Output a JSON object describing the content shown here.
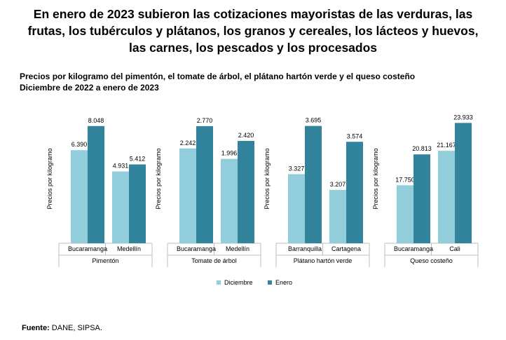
{
  "headline": {
    "line1": "En enero de 2023 subieron las cotizaciones mayoristas de las verduras, las",
    "line2": "frutas, los tubérculos y plátanos, los granos y cereales, los lácteos y huevos,",
    "line3": "las carnes, los pescados y los procesados"
  },
  "subtitle": {
    "line1": "Precios por kilogramo del pimentón, el tomate de árbol, el plátano hartón verde y el queso costeño",
    "line2": "Diciembre de 2022 a enero de 2023"
  },
  "source": {
    "label": "Fuente:",
    "text": "DANE, SIPSA."
  },
  "colors": {
    "diciembre": "#92cddc",
    "enero": "#31849b",
    "axis": "#bfbfbf"
  },
  "chart_data": {
    "type": "bar",
    "ylabel": "Precios por kilogramo",
    "legend": [
      "Diciembre",
      "Enero"
    ],
    "legend_position": "bottom",
    "grid": false,
    "panels": [
      {
        "product": "Pimentón",
        "categories": [
          "Bucaramanga",
          "Medellín"
        ],
        "series": [
          {
            "name": "Diciembre",
            "values": [
              6390,
              4931
            ],
            "labels": [
              "6.390",
              "4.931"
            ]
          },
          {
            "name": "Enero",
            "values": [
              8048,
              5412
            ],
            "labels": [
              "8.048",
              "5.412"
            ]
          }
        ],
        "ylim": [
          0,
          9000
        ]
      },
      {
        "product": "Tomate de árbol",
        "categories": [
          "Bucaramanga",
          "Medellín"
        ],
        "series": [
          {
            "name": "Diciembre",
            "values": [
              2242,
              1996
            ],
            "labels": [
              "2.242",
              "1.996"
            ]
          },
          {
            "name": "Enero",
            "values": [
              2770,
              2420
            ],
            "labels": [
              "2.770",
              "2.420"
            ]
          }
        ],
        "ylim": [
          0,
          3100
        ]
      },
      {
        "product": "Plátano hartón verde",
        "categories": [
          "Barranquilla",
          "Cartagena"
        ],
        "series": [
          {
            "name": "Diciembre",
            "values": [
              3327,
              3207
            ],
            "labels": [
              "3.327",
              "3.207"
            ]
          },
          {
            "name": "Enero",
            "values": [
              3695,
              3574
            ],
            "labels": [
              "3.695",
              "3.574"
            ]
          }
        ],
        "ylim": [
          2800,
          3800
        ]
      },
      {
        "product": "Queso costeño",
        "categories": [
          "Bucaramanga",
          "Cali"
        ],
        "series": [
          {
            "name": "Diciembre",
            "values": [
              17750,
              21167
            ],
            "labels": [
              "17.750",
              "21.167"
            ]
          },
          {
            "name": "Enero",
            "values": [
              20813,
              23933
            ],
            "labels": [
              "20.813",
              "23.933"
            ]
          }
        ],
        "ylim": [
          12000,
          25000
        ]
      }
    ]
  }
}
